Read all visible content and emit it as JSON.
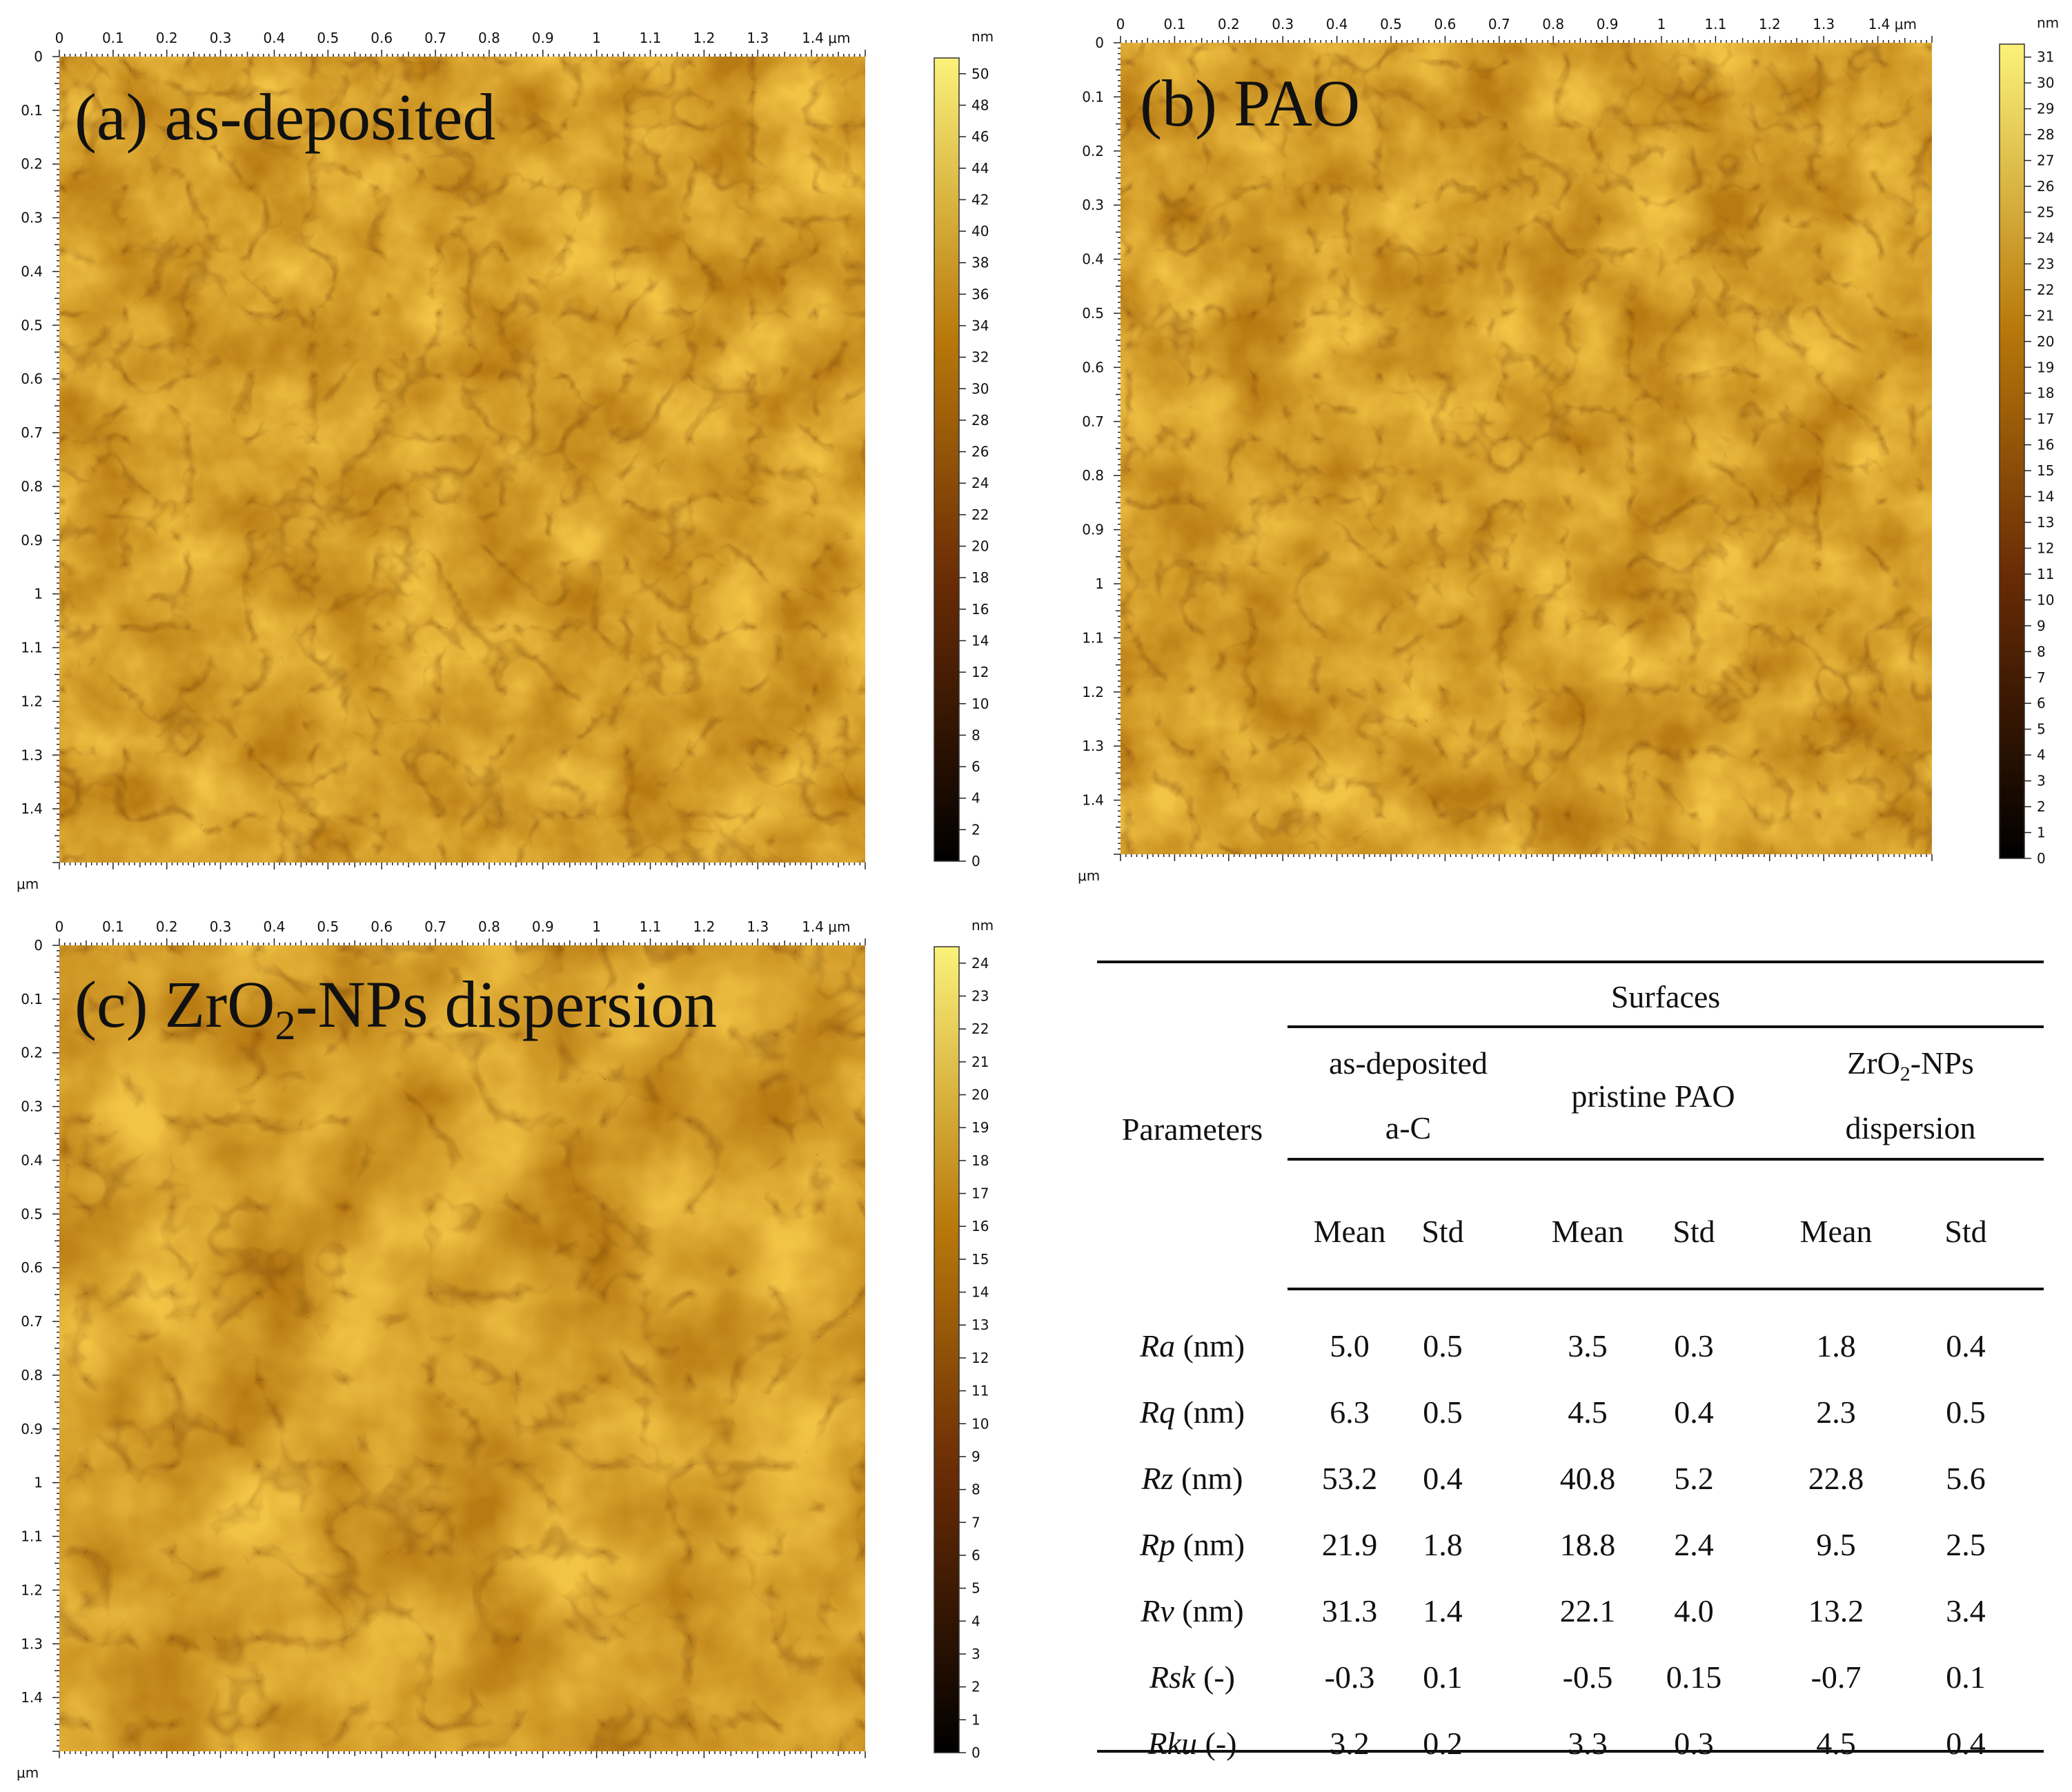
{
  "panels": [
    {
      "id": "a",
      "title_pre": "(a) as-deposited",
      "title_sub": "",
      "title_post": "",
      "unit": "nm",
      "axis_unit": "μm",
      "x_ticks": [
        "0",
        "0.1",
        "0.2",
        "0.3",
        "0.4",
        "0.5",
        "0.6",
        "0.7",
        "0.8",
        "0.9",
        "1",
        "1.1",
        "1.2",
        "1.3",
        "1.4 μm"
      ],
      "y_ticks": [
        "0",
        "0.1",
        "0.2",
        "0.3",
        "0.4",
        "0.5",
        "0.6",
        "0.7",
        "0.8",
        "0.9",
        "1",
        "1.1",
        "1.2",
        "1.3",
        "1.4"
      ],
      "cbar_max": 51,
      "cbar_step": 2,
      "cbar_top_label": 50
    },
    {
      "id": "b",
      "title_pre": "(b) PAO",
      "title_sub": "",
      "title_post": "",
      "unit": "nm",
      "axis_unit": "μm",
      "x_ticks": [
        "0",
        "0.1",
        "0.2",
        "0.3",
        "0.4",
        "0.5",
        "0.6",
        "0.7",
        "0.8",
        "0.9",
        "1",
        "1.1",
        "1.2",
        "1.3",
        "1.4 μm"
      ],
      "y_ticks": [
        "0",
        "0.1",
        "0.2",
        "0.3",
        "0.4",
        "0.5",
        "0.6",
        "0.7",
        "0.8",
        "0.9",
        "1",
        "1.1",
        "1.2",
        "1.3",
        "1.4"
      ],
      "cbar_max": 31.5,
      "cbar_step": 1,
      "cbar_top_label": 31
    },
    {
      "id": "c",
      "title_pre": "(c) ZrO",
      "title_sub": "2",
      "title_post": "-NPs dispersion",
      "unit": "nm",
      "axis_unit": "μm",
      "x_ticks": [
        "0",
        "0.1",
        "0.2",
        "0.3",
        "0.4",
        "0.5",
        "0.6",
        "0.7",
        "0.8",
        "0.9",
        "1",
        "1.1",
        "1.2",
        "1.3",
        "1.4 μm"
      ],
      "y_ticks": [
        "0",
        "0.1",
        "0.2",
        "0.3",
        "0.4",
        "0.5",
        "0.6",
        "0.7",
        "0.8",
        "0.9",
        "1",
        "1.1",
        "1.2",
        "1.3",
        "1.4"
      ],
      "cbar_max": 24.5,
      "cbar_step": 1,
      "cbar_top_label": 24
    }
  ],
  "colors": {
    "dark": "#000000",
    "mid": "#b8780a",
    "light": "#fbf27a"
  },
  "table": {
    "surfaces_header": "Surfaces",
    "parameters_header": "Parameters",
    "groups": [
      {
        "line1": "as-deposited",
        "line2": "a-C"
      },
      {
        "line1": "pristine PAO",
        "line2": ""
      },
      {
        "line1_pre": "ZrO",
        "line1_sub": "2",
        "line1_post": "-NPs",
        "line2": "dispersion"
      }
    ],
    "mean_label": "Mean",
    "std_label": "Std",
    "rows": [
      {
        "symbol": "Ra",
        "unit": " (nm)",
        "values": [
          "5.0",
          "0.5",
          "3.5",
          "0.3",
          "1.8",
          "0.4"
        ]
      },
      {
        "symbol": "Rq",
        "unit": " (nm)",
        "values": [
          "6.3",
          "0.5",
          "4.5",
          "0.4",
          "2.3",
          "0.5"
        ]
      },
      {
        "symbol": "Rz",
        "unit": " (nm)",
        "values": [
          "53.2",
          "0.4",
          "40.8",
          "5.2",
          "22.8",
          "5.6"
        ]
      },
      {
        "symbol": "Rp",
        "unit": " (nm)",
        "values": [
          "21.9",
          "1.8",
          "18.8",
          "2.4",
          "9.5",
          "2.5"
        ]
      },
      {
        "symbol": "Rv",
        "unit": " (nm)",
        "values": [
          "31.3",
          "1.4",
          "22.1",
          "4.0",
          "13.2",
          "3.4"
        ]
      },
      {
        "symbol": "Rsk",
        "unit": " (-)",
        "values": [
          "-0.3",
          "0.1",
          "-0.5",
          "0.15",
          "-0.7",
          "0.1"
        ]
      },
      {
        "symbol": "Rku",
        "unit": " (-)",
        "values": [
          "3.2",
          "0.2",
          "3.3",
          "0.3",
          "4.5",
          "0.4"
        ]
      }
    ]
  }
}
